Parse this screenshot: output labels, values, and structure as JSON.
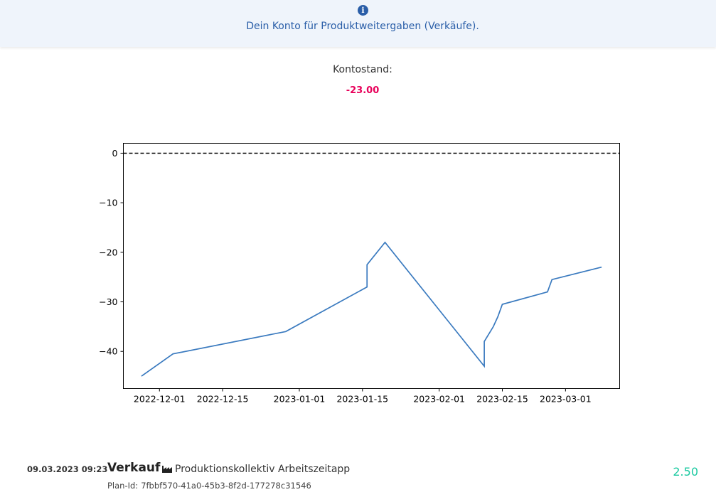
{
  "notice": {
    "icon": "info-circle-icon",
    "text": "Dein Konto für Produktweitergaben (Verkäufe)."
  },
  "balance": {
    "label": "Kontostand:",
    "value": "-23.00",
    "color": "#e8005a"
  },
  "chart_data": {
    "type": "line",
    "x": [
      "2022-11-27",
      "2022-12-04",
      "2022-12-29",
      "2023-01-16",
      "2023-01-16",
      "2023-01-20",
      "2023-02-11",
      "2023-02-11",
      "2023-02-13",
      "2023-02-14",
      "2023-02-15",
      "2023-02-25",
      "2023-02-26",
      "2023-03-09"
    ],
    "y": [
      -45,
      -40.5,
      -36,
      -27,
      -22.5,
      -18,
      -43,
      -38,
      -35,
      -33,
      -30.5,
      -28,
      -25.5,
      -23
    ],
    "xticks": [
      "2022-12-01",
      "2022-12-15",
      "2023-01-01",
      "2023-01-15",
      "2023-02-01",
      "2023-02-15",
      "2023-03-01"
    ],
    "yticks": [
      "0",
      "−10",
      "−20",
      "−30",
      "−40"
    ],
    "ylim": [
      -47.5,
      2
    ],
    "xlim": [
      "2022-11-23",
      "2023-03-13"
    ],
    "reference_line": {
      "y": 0,
      "style": "dashed",
      "color": "#000000"
    },
    "line_color": "#3a7abf",
    "grid": false
  },
  "entries": [
    {
      "date": "09.03.2023 09:23",
      "type": "Verkauf",
      "icon": "factory-icon",
      "company": "Produktionskollektiv Arbeitszeitapp",
      "plan_label": "Plan-Id:",
      "plan_id": "7fbbf570-41a0-45b3-8f2d-177278c31546",
      "amount": "2.50",
      "amount_color": "#1ac9a0"
    }
  ]
}
